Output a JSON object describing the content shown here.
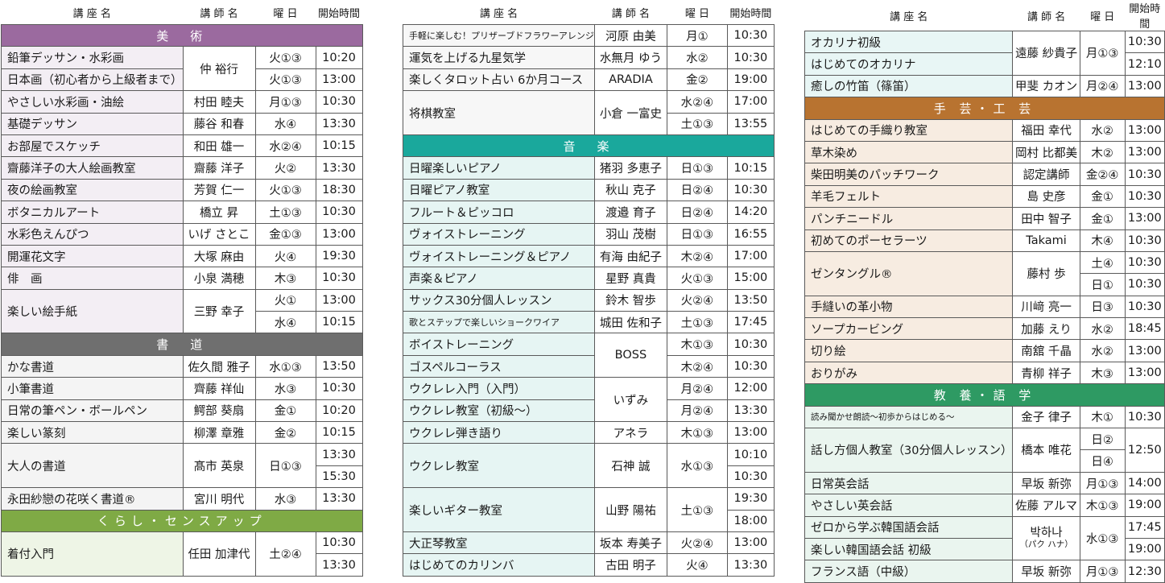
{
  "columns": [
    {
      "headers": [
        "講 座 名",
        "講 師 名",
        "曜 日",
        "開始時間"
      ],
      "rows": [
        {
          "type": "section",
          "label": "美　術",
          "color": "#9b6a9f"
        },
        {
          "type": "course",
          "name": "鉛筆デッサン・水彩画",
          "teacher": "仲 裕行",
          "teacher_rowspan": 2,
          "day": "火①③",
          "time": "10:20"
        },
        {
          "type": "course",
          "name": "日本画（初心者から上級者まで）",
          "day": "火①③",
          "time": "13:00"
        },
        {
          "type": "course",
          "name": "やさしい水彩画・油絵",
          "teacher": "村田 睦夫",
          "day": "月①③",
          "time": "10:30"
        },
        {
          "type": "course",
          "name": "基礎デッサン",
          "teacher": "藤谷 和春",
          "day": "水④",
          "time": "13:30"
        },
        {
          "type": "course",
          "name": "お部屋でスケッチ",
          "teacher": "和田 雄一",
          "day": "水②④",
          "time": "10:15"
        },
        {
          "type": "course",
          "name": "齋藤洋子の大人絵画教室",
          "teacher": "齋藤 洋子",
          "day": "火②",
          "time": "13:30"
        },
        {
          "type": "course",
          "name": "夜の絵画教室",
          "teacher": "芳賀 仁一",
          "day": "火①③",
          "time": "18:30"
        },
        {
          "type": "course",
          "name": "ボタニカルアート",
          "teacher": "橋立 昇",
          "day": "土①③",
          "time": "10:30"
        },
        {
          "type": "course",
          "name": "水彩色えんぴつ",
          "teacher": "いげ さとこ",
          "day": "金①③",
          "time": "13:00"
        },
        {
          "type": "course",
          "name": "開運花文字",
          "teacher": "大塚 麻由",
          "day": "火④",
          "time": "19:30"
        },
        {
          "type": "course",
          "name": "俳　画",
          "teacher": "小泉 満穂",
          "day": "木③",
          "time": "10:30"
        },
        {
          "type": "course",
          "name": "楽しい絵手紙",
          "name_rowspan": 2,
          "teacher": "三野 幸子",
          "teacher_rowspan": 2,
          "day": "火①",
          "time": "13:00"
        },
        {
          "type": "course",
          "day": "水④",
          "time": "10:15"
        },
        {
          "type": "section",
          "label": "書　道",
          "color": "#6f6f6f"
        },
        {
          "type": "course",
          "name": "かな書道",
          "teacher": "佐久間 雅子",
          "day": "水①③",
          "time": "13:50"
        },
        {
          "type": "course",
          "name": "小筆書道",
          "teacher": "齊藤 祥仙",
          "day": "水③",
          "time": "10:30"
        },
        {
          "type": "course",
          "name": "日常の筆ペン・ボールペン",
          "teacher": "鰐部 葵扇",
          "day": "金①",
          "time": "10:20"
        },
        {
          "type": "course",
          "name": "楽しい篆刻",
          "teacher": "柳澤 章雅",
          "day": "金②",
          "time": "10:15"
        },
        {
          "type": "course",
          "name": "大人の書道",
          "name_rowspan": 2,
          "teacher": "髙市 英泉",
          "teacher_rowspan": 2,
          "day": "日①③",
          "day_rowspan": 2,
          "time": "13:30"
        },
        {
          "type": "course",
          "time": "15:30"
        },
        {
          "type": "course",
          "name": "永田紗戀の花咲く書道®",
          "teacher": "宮川 明代",
          "day": "水③",
          "time": "13:30"
        },
        {
          "type": "section",
          "label": "くらし・センスアップ",
          "color": "#7faa45"
        },
        {
          "type": "course",
          "name": "着付入門",
          "name_rowspan": 2,
          "teacher": "任田 加津代",
          "teacher_rowspan": 2,
          "day": "土②④",
          "day_rowspan": 2,
          "time": "10:30"
        },
        {
          "type": "course",
          "time": "13:30"
        }
      ]
    },
    {
      "headers": [
        "講 座 名",
        "講 師 名",
        "曜 日",
        "開始時間"
      ],
      "rows": [
        {
          "type": "course",
          "name": "手軽に楽しむ！プリザーブドフラワーアレンジ",
          "name_small": true,
          "teacher": "河原 由美",
          "day": "月①",
          "time": "10:30"
        },
        {
          "type": "course",
          "name": "運気を上げる九星気学",
          "teacher": "水無月 ゆう",
          "day": "水②",
          "time": "10:30"
        },
        {
          "type": "course",
          "name": "楽しくタロット占い 6か月コース",
          "teacher": "ARADIA",
          "day": "金②",
          "time": "19:00"
        },
        {
          "type": "course",
          "name": "将棋教室",
          "name_rowspan": 2,
          "teacher": "小倉 一富史",
          "teacher_rowspan": 2,
          "day": "水②④",
          "time": "17:00"
        },
        {
          "type": "course",
          "day": "土①③",
          "time": "13:55"
        },
        {
          "type": "section",
          "label": "音　楽",
          "color": "#1aa89c"
        },
        {
          "type": "course",
          "name": "日曜楽しいピアノ",
          "teacher": "猪羽 多恵子",
          "day": "日①③",
          "time": "10:15"
        },
        {
          "type": "course",
          "name": "日曜ピアノ教室",
          "teacher": "秋山 克子",
          "day": "日②④",
          "time": "10:30"
        },
        {
          "type": "course",
          "name": "フルート＆ピッコロ",
          "teacher": "渡邉 育子",
          "day": "日②④",
          "time": "14:20"
        },
        {
          "type": "course",
          "name": "ヴォイストレーニング",
          "teacher": "羽山 茂樹",
          "day": "日①③",
          "time": "16:55"
        },
        {
          "type": "course",
          "name": "ヴォイストレーニング＆ピアノ",
          "teacher": "有海 由紀子",
          "day": "木②④",
          "time": "17:00"
        },
        {
          "type": "course",
          "name": "声楽＆ピアノ",
          "teacher": "星野 真貴",
          "day": "火①③",
          "time": "15:00"
        },
        {
          "type": "course",
          "name": "サックス30分個人レッスン",
          "teacher": "鈴木 智歩",
          "day": "火②④",
          "time": "13:50"
        },
        {
          "type": "course",
          "name": "歌とステップで楽しいショークワイア",
          "name_small": true,
          "teacher": "城田 佐和子",
          "day": "土①③",
          "time": "17:45"
        },
        {
          "type": "course",
          "name": "ボイストレーニング",
          "teacher": "BOSS",
          "teacher_rowspan": 2,
          "day": "木①③",
          "time": "10:30"
        },
        {
          "type": "course",
          "name": "ゴスペルコーラス",
          "day": "木②④",
          "time": "10:30"
        },
        {
          "type": "course",
          "name": "ウクレレ入門（入門）",
          "teacher": "いずみ",
          "teacher_rowspan": 2,
          "day": "月②④",
          "time": "12:00"
        },
        {
          "type": "course",
          "name": "ウクレレ教室（初級～）",
          "day": "月②④",
          "time": "13:30"
        },
        {
          "type": "course",
          "name": "ウクレレ弾き語り",
          "teacher": "アネラ",
          "day": "木①③",
          "time": "13:00"
        },
        {
          "type": "course",
          "name": "ウクレレ教室",
          "name_rowspan": 2,
          "teacher": "石神 誠",
          "teacher_rowspan": 2,
          "day": "水①③",
          "day_rowspan": 2,
          "time": "10:10"
        },
        {
          "type": "course",
          "time": "10:30"
        },
        {
          "type": "course",
          "name": "楽しいギター教室",
          "name_rowspan": 2,
          "teacher": "山野 陽祐",
          "teacher_rowspan": 2,
          "day": "土①③",
          "day_rowspan": 2,
          "time": "19:30"
        },
        {
          "type": "course",
          "time": "18:00"
        },
        {
          "type": "course",
          "name": "大正琴教室",
          "teacher": "坂本 寿美子",
          "day": "火②④",
          "time": "13:00"
        },
        {
          "type": "course",
          "name": "はじめてのカリンバ",
          "teacher": "古田 明子",
          "day": "火④",
          "time": "13:30"
        }
      ]
    },
    {
      "headers": [
        "講 座 名",
        "講 師 名",
        "曜 日",
        "開始時間"
      ],
      "rows": [
        {
          "type": "course",
          "name": "オカリナ初級",
          "teacher": "遠藤 紗貴子",
          "teacher_rowspan": 2,
          "day": "月①③",
          "day_rowspan": 2,
          "time": "10:30"
        },
        {
          "type": "course",
          "name": "はじめてのオカリナ",
          "time": "12:10"
        },
        {
          "type": "course",
          "name": "癒しの竹笛（篠笛）",
          "teacher": "甲斐 カオン",
          "day": "月②④",
          "time": "13:00"
        },
        {
          "type": "section",
          "label": "手 芸・工 芸",
          "color": "#b87330"
        },
        {
          "type": "course",
          "name": "はじめての手織り教室",
          "teacher": "福田 幸代",
          "day": "水②",
          "time": "13:00"
        },
        {
          "type": "course",
          "name": "草木染め",
          "teacher": "岡村 比都美",
          "day": "木②",
          "time": "13:00"
        },
        {
          "type": "course",
          "name": "柴田明美のパッチワーク",
          "teacher": "認定講師",
          "day": "金②④",
          "time": "10:30"
        },
        {
          "type": "course",
          "name": "羊毛フェルト",
          "teacher": "島 史彦",
          "day": "金①",
          "time": "10:30"
        },
        {
          "type": "course",
          "name": "パンチニードル",
          "teacher": "田中 智子",
          "day": "金①",
          "time": "13:00"
        },
        {
          "type": "course",
          "name": "初めてのポーセラーツ",
          "teacher": "Takami",
          "day": "木④",
          "time": "10:30"
        },
        {
          "type": "course",
          "name": "ゼンタングル®",
          "name_rowspan": 2,
          "teacher": "藤村 歩",
          "teacher_rowspan": 2,
          "day": "土④",
          "time": "10:30"
        },
        {
          "type": "course",
          "day": "日①",
          "time": "10:30"
        },
        {
          "type": "course",
          "name": "手縫いの革小物",
          "teacher": "川﨑 亮一",
          "day": "日③",
          "time": "10:30"
        },
        {
          "type": "course",
          "name": "ソープカービング",
          "teacher": "加藤 えり",
          "day": "水②",
          "time": "18:45"
        },
        {
          "type": "course",
          "name": "切り絵",
          "teacher": "南舘 千晶",
          "day": "水②",
          "time": "13:00"
        },
        {
          "type": "course",
          "name": "おりがみ",
          "teacher": "青柳 祥子",
          "day": "木③",
          "time": "13:00"
        },
        {
          "type": "section",
          "label": "教 養・語 学",
          "color": "#2e9a63"
        },
        {
          "type": "course",
          "name": "読み聞かせ朗読～初歩からはじめる～",
          "name_xs": true,
          "teacher": "金子 律子",
          "day": "木①",
          "time": "10:30"
        },
        {
          "type": "course",
          "name": "話し方個人教室（30分個人レッスン）",
          "name_rowspan": 2,
          "teacher": "橋本 唯花",
          "teacher_rowspan": 2,
          "day": "日②",
          "time": "12:50",
          "time_rowspan": 2
        },
        {
          "type": "course",
          "day": "日④"
        },
        {
          "type": "course",
          "name": "日常英会話",
          "teacher": "早坂 新弥",
          "day": "月①③",
          "time": "14:00"
        },
        {
          "type": "course",
          "name": "やさしい英会話",
          "teacher": "佐藤 アルマ",
          "day": "木①③",
          "time": "19:00"
        },
        {
          "type": "course",
          "name": "ゼロから学ぶ韓国語会話",
          "teacher": "박하나",
          "teacher_ruby": "（パク ハナ）",
          "teacher_rowspan": 2,
          "day": "水①③",
          "day_rowspan": 2,
          "time": "17:45"
        },
        {
          "type": "course",
          "name": "楽しい韓国語会話 初級",
          "time": "19:00"
        },
        {
          "type": "course",
          "name": "フランス語（中級）",
          "teacher": "早坂 新弥",
          "day": "月①③",
          "time": "12:30"
        }
      ]
    }
  ],
  "tints": [
    "#f3eef4",
    "#e6f5f3",
    "#f7ece1",
    "#f4f4f4",
    "#eaf5ef"
  ]
}
